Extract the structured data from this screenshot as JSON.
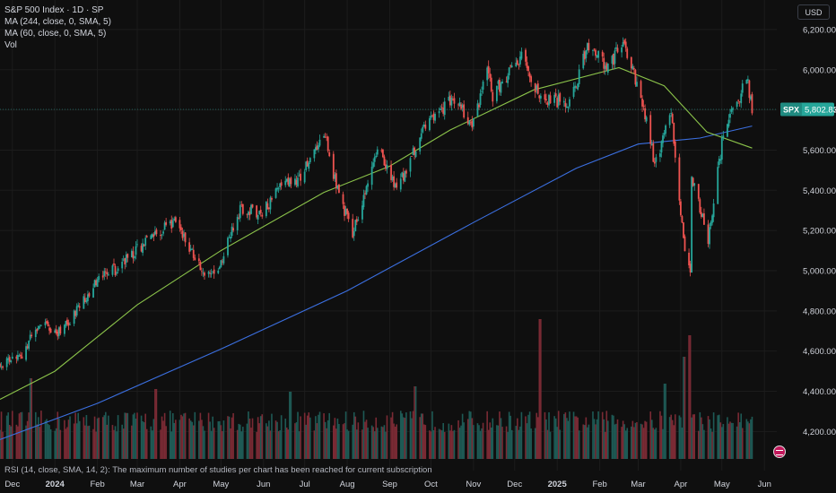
{
  "legend": {
    "title": "S&P 500 Index · 1D · SP",
    "ma1": "MA (244, close, 0, SMA, 5)",
    "ma2": "MA (60, close, 0, SMA, 5)",
    "vol": "Vol"
  },
  "currency": "USD",
  "footer_text": "RSI (14, close, SMA, 14, 2): The maximum number of studies per chart has been reached for current subscription",
  "chart_data": {
    "type": "candlestick",
    "symbol": "SPX",
    "last_price": 5802.83,
    "last_price_label": "5,802.83",
    "y_range": [
      4050,
      6280
    ],
    "y_ticks": [
      {
        "value": 6200,
        "label": "6,200.00"
      },
      {
        "value": 6000,
        "label": "6,000.00"
      },
      {
        "value": 5800,
        "label": "5,800.00"
      },
      {
        "value": 5600,
        "label": "5,600.00"
      },
      {
        "value": 5400,
        "label": "5,400.00"
      },
      {
        "value": 5200,
        "label": "5,200.00"
      },
      {
        "value": 5000,
        "label": "5,000.00"
      },
      {
        "value": 4800,
        "label": "4,800.00"
      },
      {
        "value": 4600,
        "label": "4,600.00"
      },
      {
        "value": 4400,
        "label": "4,400.00"
      },
      {
        "value": 4200,
        "label": "4,200.00"
      }
    ],
    "x_range": [
      "2023-11-22",
      "2025-06-10"
    ],
    "x_ticks": [
      {
        "date": "2023-12-01",
        "label": "Dec"
      },
      {
        "date": "2024-01-01",
        "label": "2024"
      },
      {
        "date": "2024-02-01",
        "label": "Feb"
      },
      {
        "date": "2024-03-01",
        "label": "Mar"
      },
      {
        "date": "2024-04-01",
        "label": "Apr"
      },
      {
        "date": "2024-05-01",
        "label": "May"
      },
      {
        "date": "2024-06-01",
        "label": "Jun"
      },
      {
        "date": "2024-07-01",
        "label": "Jul"
      },
      {
        "date": "2024-08-01",
        "label": "Aug"
      },
      {
        "date": "2024-09-01",
        "label": "Sep"
      },
      {
        "date": "2024-10-01",
        "label": "Oct"
      },
      {
        "date": "2024-11-01",
        "label": "Nov"
      },
      {
        "date": "2024-12-01",
        "label": "Dec"
      },
      {
        "date": "2025-01-01",
        "label": "2025"
      },
      {
        "date": "2025-02-01",
        "label": "Feb"
      },
      {
        "date": "2025-03-01",
        "label": "Mar"
      },
      {
        "date": "2025-04-01",
        "label": "Apr"
      },
      {
        "date": "2025-05-01",
        "label": "May"
      },
      {
        "date": "2025-06-01",
        "label": "Jun"
      }
    ],
    "close_path": [
      [
        "2023-11-22",
        4530
      ],
      [
        "2023-12-08",
        4590
      ],
      [
        "2023-12-20",
        4740
      ],
      [
        "2024-01-04",
        4690
      ],
      [
        "2024-01-19",
        4820
      ],
      [
        "2024-02-02",
        4960
      ],
      [
        "2024-02-15",
        5010
      ],
      [
        "2024-03-01",
        5110
      ],
      [
        "2024-03-28",
        5250
      ],
      [
        "2024-04-19",
        4970
      ],
      [
        "2024-05-01",
        5040
      ],
      [
        "2024-05-15",
        5310
      ],
      [
        "2024-05-31",
        5280
      ],
      [
        "2024-06-12",
        5420
      ],
      [
        "2024-06-28",
        5470
      ],
      [
        "2024-07-16",
        5660
      ],
      [
        "2024-07-25",
        5400
      ],
      [
        "2024-08-05",
        5180
      ],
      [
        "2024-08-23",
        5630
      ],
      [
        "2024-09-06",
        5400
      ],
      [
        "2024-09-30",
        5760
      ],
      [
        "2024-10-18",
        5860
      ],
      [
        "2024-10-31",
        5710
      ],
      [
        "2024-11-11",
        6000
      ],
      [
        "2024-11-15",
        5870
      ],
      [
        "2024-12-06",
        6080
      ],
      [
        "2024-12-18",
        5870
      ],
      [
        "2025-01-10",
        5830
      ],
      [
        "2025-01-23",
        6120
      ],
      [
        "2025-02-07",
        6020
      ],
      [
        "2025-02-19",
        6140
      ],
      [
        "2025-03-07",
        5760
      ],
      [
        "2025-03-13",
        5520
      ],
      [
        "2025-03-25",
        5780
      ],
      [
        "2025-04-04",
        5070
      ],
      [
        "2025-04-08",
        4980
      ],
      [
        "2025-04-09",
        5460
      ],
      [
        "2025-04-21",
        5160
      ],
      [
        "2025-05-02",
        5680
      ],
      [
        "2025-05-12",
        5840
      ],
      [
        "2025-05-19",
        5960
      ],
      [
        "2025-05-23",
        5802
      ]
    ],
    "ma_series": [
      {
        "name": "MA (244, close, 0, SMA, 5)",
        "color": "#3b6fe0",
        "points": [
          [
            "2023-11-22",
            4160
          ],
          [
            "2024-02-01",
            4340
          ],
          [
            "2024-05-01",
            4610
          ],
          [
            "2024-08-01",
            4900
          ],
          [
            "2024-11-01",
            5240
          ],
          [
            "2025-01-15",
            5510
          ],
          [
            "2025-03-01",
            5630
          ],
          [
            "2025-04-15",
            5660
          ],
          [
            "2025-05-23",
            5720
          ]
        ]
      },
      {
        "name": "MA (60, close, 0, SMA, 5)",
        "color": "#8bc34a",
        "points": [
          [
            "2023-11-22",
            4360
          ],
          [
            "2024-01-01",
            4500
          ],
          [
            "2024-03-01",
            4830
          ],
          [
            "2024-05-01",
            5100
          ],
          [
            "2024-07-15",
            5390
          ],
          [
            "2024-09-01",
            5520
          ],
          [
            "2024-10-15",
            5700
          ],
          [
            "2024-12-15",
            5900
          ],
          [
            "2025-02-15",
            6010
          ],
          [
            "2025-03-20",
            5920
          ],
          [
            "2025-04-20",
            5690
          ],
          [
            "2025-05-23",
            5610
          ]
        ]
      }
    ],
    "volume": {
      "spikes": [
        [
          "2023-12-15",
          1.5
        ],
        [
          "2024-03-15",
          1.3
        ],
        [
          "2024-06-21",
          1.25
        ],
        [
          "2024-09-20",
          1.35
        ],
        [
          "2024-12-20",
          2.6
        ],
        [
          "2025-03-21",
          1.4
        ],
        [
          "2025-04-04",
          1.9
        ],
        [
          "2025-04-07",
          2.3
        ]
      ]
    }
  }
}
